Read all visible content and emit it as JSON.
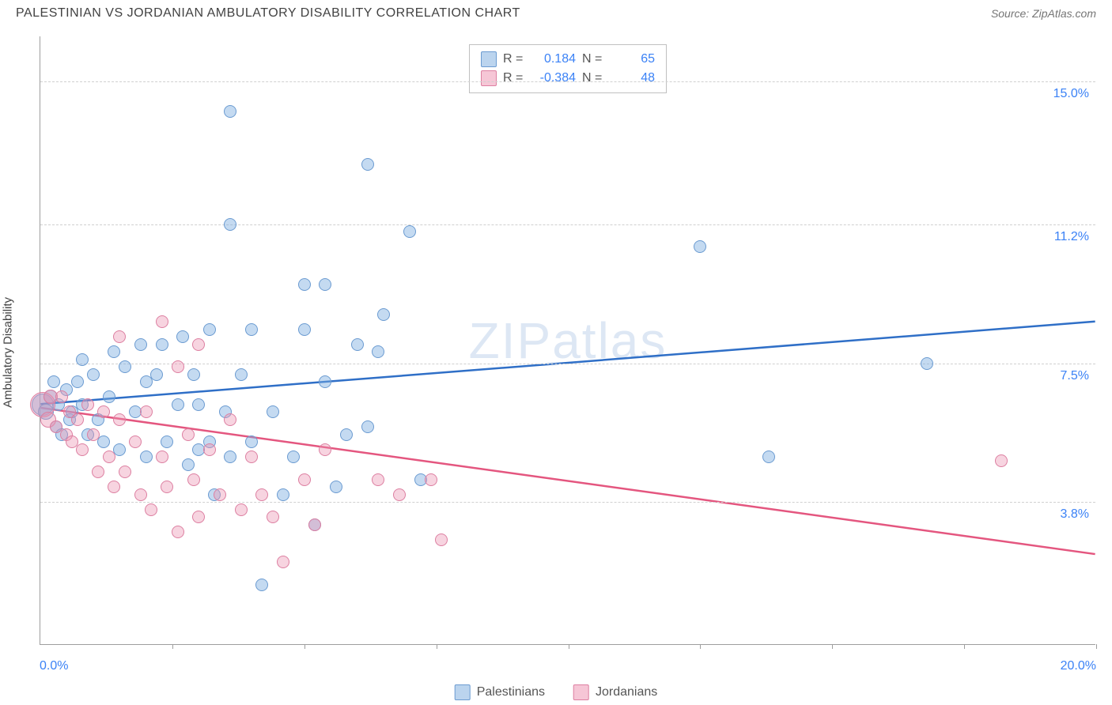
{
  "title": "PALESTINIAN VS JORDANIAN AMBULATORY DISABILITY CORRELATION CHART",
  "source": "Source: ZipAtlas.com",
  "watermark": {
    "part1": "ZIP",
    "part2": "atlas"
  },
  "y_axis_label": "Ambulatory Disability",
  "x_range": {
    "min_label": "0.0%",
    "max_label": "20.0%",
    "min": 0.0,
    "max": 20.0
  },
  "y_range": {
    "min": 0.0,
    "max": 16.2
  },
  "y_gridlines": [
    {
      "value": 3.8,
      "label": "3.8%"
    },
    {
      "value": 7.5,
      "label": "7.5%"
    },
    {
      "value": 11.2,
      "label": "11.2%"
    },
    {
      "value": 15.0,
      "label": "15.0%"
    }
  ],
  "x_ticks": [
    2.5,
    5.0,
    7.5,
    10.0,
    12.5,
    15.0,
    17.5,
    20.0
  ],
  "series": [
    {
      "name": "Palestinians",
      "fill": "rgba(124, 172, 223, 0.45)",
      "stroke": "#6b9bd1",
      "line_color": "#2f6fc7",
      "swatch_fill": "#bbd4ee",
      "swatch_border": "#6b9bd1",
      "r_label": "R =",
      "r_value": "0.184",
      "n_label": "N =",
      "n_value": "65",
      "trend": {
        "y_at_xmin": 6.4,
        "y_at_xmax": 8.6
      },
      "points": [
        {
          "x": 0.05,
          "y": 6.4,
          "r": 14
        },
        {
          "x": 0.1,
          "y": 6.2,
          "r": 10
        },
        {
          "x": 0.2,
          "y": 6.6,
          "r": 9
        },
        {
          "x": 0.25,
          "y": 7.0,
          "r": 8
        },
        {
          "x": 0.3,
          "y": 5.8,
          "r": 8
        },
        {
          "x": 0.35,
          "y": 6.4,
          "r": 8
        },
        {
          "x": 0.4,
          "y": 5.6,
          "r": 8
        },
        {
          "x": 0.5,
          "y": 6.8,
          "r": 8
        },
        {
          "x": 0.55,
          "y": 6.0,
          "r": 8
        },
        {
          "x": 0.6,
          "y": 6.2,
          "r": 8
        },
        {
          "x": 0.7,
          "y": 7.0,
          "r": 8
        },
        {
          "x": 0.8,
          "y": 6.4,
          "r": 8
        },
        {
          "x": 0.8,
          "y": 7.6,
          "r": 8
        },
        {
          "x": 0.9,
          "y": 5.6,
          "r": 8
        },
        {
          "x": 1.0,
          "y": 7.2,
          "r": 8
        },
        {
          "x": 1.1,
          "y": 6.0,
          "r": 8
        },
        {
          "x": 1.2,
          "y": 5.4,
          "r": 8
        },
        {
          "x": 1.3,
          "y": 6.6,
          "r": 8
        },
        {
          "x": 1.4,
          "y": 7.8,
          "r": 8
        },
        {
          "x": 1.5,
          "y": 5.2,
          "r": 8
        },
        {
          "x": 1.6,
          "y": 7.4,
          "r": 8
        },
        {
          "x": 1.8,
          "y": 6.2,
          "r": 8
        },
        {
          "x": 1.9,
          "y": 8.0,
          "r": 8
        },
        {
          "x": 2.0,
          "y": 7.0,
          "r": 8
        },
        {
          "x": 2.0,
          "y": 5.0,
          "r": 8
        },
        {
          "x": 2.2,
          "y": 7.2,
          "r": 8
        },
        {
          "x": 2.3,
          "y": 8.0,
          "r": 8
        },
        {
          "x": 2.4,
          "y": 5.4,
          "r": 8
        },
        {
          "x": 2.6,
          "y": 6.4,
          "r": 8
        },
        {
          "x": 2.7,
          "y": 8.2,
          "r": 8
        },
        {
          "x": 2.8,
          "y": 4.8,
          "r": 8
        },
        {
          "x": 2.9,
          "y": 7.2,
          "r": 8
        },
        {
          "x": 3.0,
          "y": 5.2,
          "r": 8
        },
        {
          "x": 3.0,
          "y": 6.4,
          "r": 8
        },
        {
          "x": 3.2,
          "y": 8.4,
          "r": 8
        },
        {
          "x": 3.2,
          "y": 5.4,
          "r": 8
        },
        {
          "x": 3.3,
          "y": 4.0,
          "r": 8
        },
        {
          "x": 3.5,
          "y": 6.2,
          "r": 8
        },
        {
          "x": 3.6,
          "y": 11.2,
          "r": 8
        },
        {
          "x": 3.6,
          "y": 5.0,
          "r": 8
        },
        {
          "x": 3.6,
          "y": 14.2,
          "r": 8
        },
        {
          "x": 3.8,
          "y": 7.2,
          "r": 8
        },
        {
          "x": 4.0,
          "y": 8.4,
          "r": 8
        },
        {
          "x": 4.0,
          "y": 5.4,
          "r": 8
        },
        {
          "x": 4.2,
          "y": 1.6,
          "r": 8
        },
        {
          "x": 4.4,
          "y": 6.2,
          "r": 8
        },
        {
          "x": 4.6,
          "y": 4.0,
          "r": 8
        },
        {
          "x": 4.8,
          "y": 5.0,
          "r": 8
        },
        {
          "x": 5.0,
          "y": 9.6,
          "r": 8
        },
        {
          "x": 5.0,
          "y": 8.4,
          "r": 8
        },
        {
          "x": 5.2,
          "y": 3.2,
          "r": 8
        },
        {
          "x": 5.4,
          "y": 9.6,
          "r": 8
        },
        {
          "x": 5.4,
          "y": 7.0,
          "r": 8
        },
        {
          "x": 5.6,
          "y": 4.2,
          "r": 8
        },
        {
          "x": 5.8,
          "y": 5.6,
          "r": 8
        },
        {
          "x": 6.0,
          "y": 8.0,
          "r": 8
        },
        {
          "x": 6.2,
          "y": 12.8,
          "r": 8
        },
        {
          "x": 6.2,
          "y": 5.8,
          "r": 8
        },
        {
          "x": 6.4,
          "y": 7.8,
          "r": 8
        },
        {
          "x": 6.5,
          "y": 8.8,
          "r": 8
        },
        {
          "x": 7.0,
          "y": 11.0,
          "r": 8
        },
        {
          "x": 7.2,
          "y": 4.4,
          "r": 8
        },
        {
          "x": 12.5,
          "y": 10.6,
          "r": 8
        },
        {
          "x": 13.8,
          "y": 5.0,
          "r": 8
        },
        {
          "x": 16.8,
          "y": 7.5,
          "r": 8
        }
      ]
    },
    {
      "name": "Jordanians",
      "fill": "rgba(236, 148, 177, 0.40)",
      "stroke": "#dd7fa1",
      "line_color": "#e4567f",
      "swatch_fill": "#f6c6d6",
      "swatch_border": "#dd7fa1",
      "r_label": "R =",
      "r_value": "-0.384",
      "n_label": "N =",
      "n_value": "48",
      "trend": {
        "y_at_xmin": 6.3,
        "y_at_xmax": 2.4
      },
      "points": [
        {
          "x": 0.05,
          "y": 6.4,
          "r": 16
        },
        {
          "x": 0.15,
          "y": 6.0,
          "r": 10
        },
        {
          "x": 0.2,
          "y": 6.6,
          "r": 9
        },
        {
          "x": 0.3,
          "y": 5.8,
          "r": 8
        },
        {
          "x": 0.4,
          "y": 6.6,
          "r": 8
        },
        {
          "x": 0.5,
          "y": 5.6,
          "r": 8
        },
        {
          "x": 0.55,
          "y": 6.2,
          "r": 8
        },
        {
          "x": 0.6,
          "y": 5.4,
          "r": 8
        },
        {
          "x": 0.7,
          "y": 6.0,
          "r": 8
        },
        {
          "x": 0.8,
          "y": 5.2,
          "r": 8
        },
        {
          "x": 0.9,
          "y": 6.4,
          "r": 8
        },
        {
          "x": 1.0,
          "y": 5.6,
          "r": 8
        },
        {
          "x": 1.1,
          "y": 4.6,
          "r": 8
        },
        {
          "x": 1.2,
          "y": 6.2,
          "r": 8
        },
        {
          "x": 1.3,
          "y": 5.0,
          "r": 8
        },
        {
          "x": 1.4,
          "y": 4.2,
          "r": 8
        },
        {
          "x": 1.5,
          "y": 6.0,
          "r": 8
        },
        {
          "x": 1.5,
          "y": 8.2,
          "r": 8
        },
        {
          "x": 1.6,
          "y": 4.6,
          "r": 8
        },
        {
          "x": 1.8,
          "y": 5.4,
          "r": 8
        },
        {
          "x": 1.9,
          "y": 4.0,
          "r": 8
        },
        {
          "x": 2.0,
          "y": 6.2,
          "r": 8
        },
        {
          "x": 2.1,
          "y": 3.6,
          "r": 8
        },
        {
          "x": 2.3,
          "y": 5.0,
          "r": 8
        },
        {
          "x": 2.3,
          "y": 8.6,
          "r": 8
        },
        {
          "x": 2.4,
          "y": 4.2,
          "r": 8
        },
        {
          "x": 2.6,
          "y": 7.4,
          "r": 8
        },
        {
          "x": 2.6,
          "y": 3.0,
          "r": 8
        },
        {
          "x": 2.8,
          "y": 5.6,
          "r": 8
        },
        {
          "x": 2.9,
          "y": 4.4,
          "r": 8
        },
        {
          "x": 3.0,
          "y": 8.0,
          "r": 8
        },
        {
          "x": 3.0,
          "y": 3.4,
          "r": 8
        },
        {
          "x": 3.2,
          "y": 5.2,
          "r": 8
        },
        {
          "x": 3.4,
          "y": 4.0,
          "r": 8
        },
        {
          "x": 3.6,
          "y": 6.0,
          "r": 8
        },
        {
          "x": 3.8,
          "y": 3.6,
          "r": 8
        },
        {
          "x": 4.0,
          "y": 5.0,
          "r": 8
        },
        {
          "x": 4.2,
          "y": 4.0,
          "r": 8
        },
        {
          "x": 4.4,
          "y": 3.4,
          "r": 8
        },
        {
          "x": 4.6,
          "y": 2.2,
          "r": 8
        },
        {
          "x": 5.0,
          "y": 4.4,
          "r": 8
        },
        {
          "x": 5.2,
          "y": 3.2,
          "r": 8
        },
        {
          "x": 5.4,
          "y": 5.2,
          "r": 8
        },
        {
          "x": 6.4,
          "y": 4.4,
          "r": 8
        },
        {
          "x": 6.8,
          "y": 4.0,
          "r": 8
        },
        {
          "x": 7.4,
          "y": 4.4,
          "r": 8
        },
        {
          "x": 7.6,
          "y": 2.8,
          "r": 8
        },
        {
          "x": 18.2,
          "y": 4.9,
          "r": 8
        }
      ]
    }
  ]
}
